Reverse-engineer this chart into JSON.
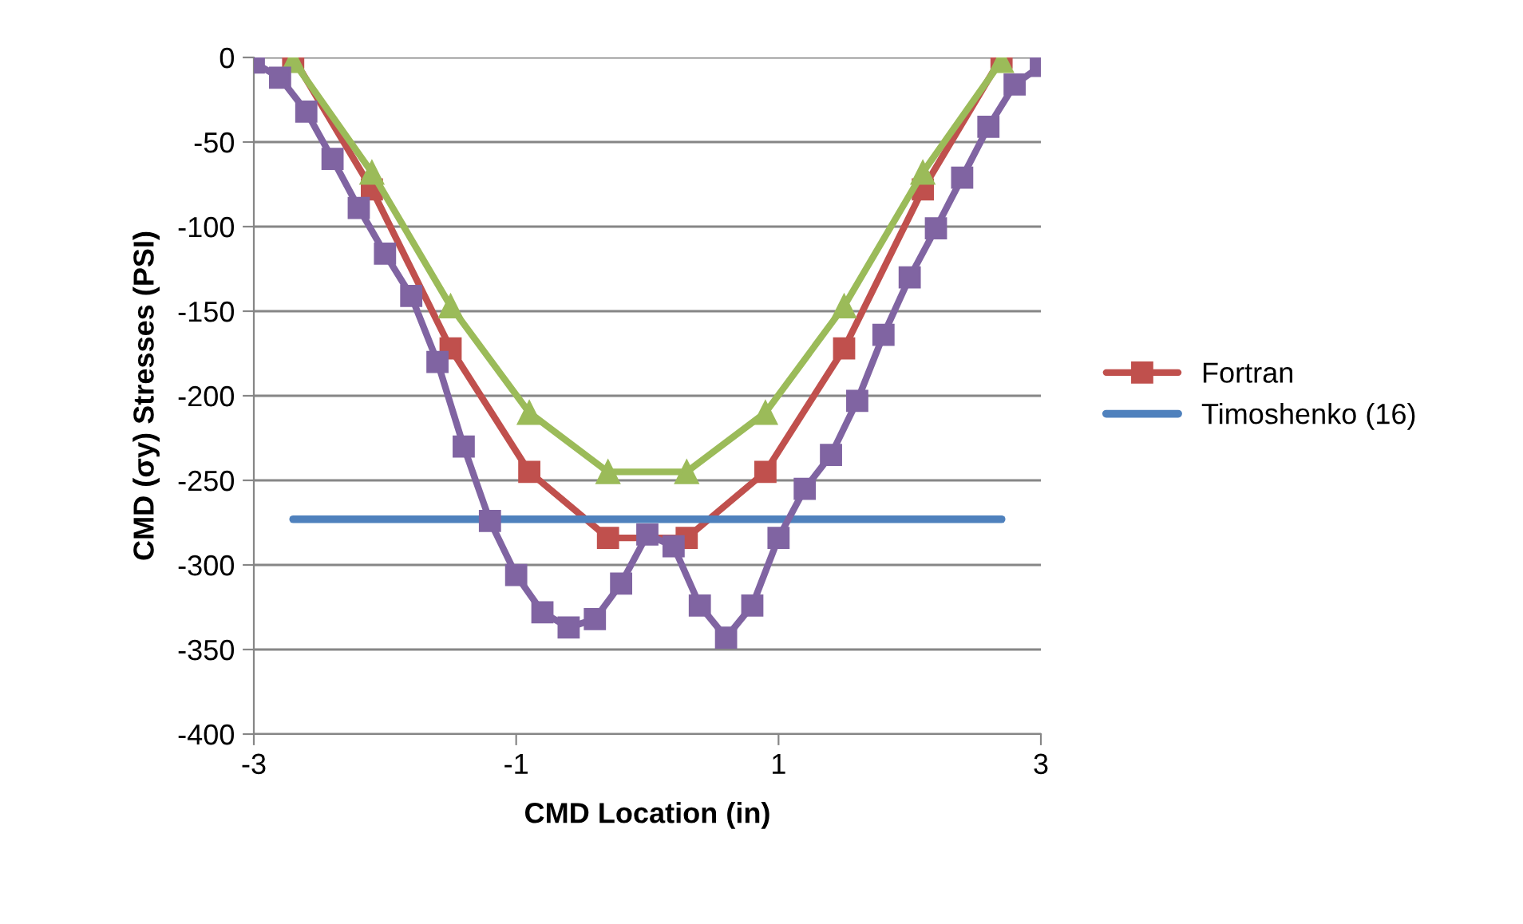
{
  "chart_data": {
    "type": "line",
    "xlabel": "CMD Location (in)",
    "ylabel": "CMD (σy) Stresses (PSI)",
    "xlim": [
      -3,
      3
    ],
    "xticks": [
      -3,
      -1,
      1,
      3
    ],
    "ylim": [
      -400,
      0
    ],
    "yticks": [
      0,
      -50,
      -100,
      -150,
      -200,
      -250,
      -300,
      -350,
      -400
    ],
    "grid": "y",
    "legend": "right",
    "series": [
      {
        "name": "Fortran",
        "color": "#c0504d",
        "marker": "square",
        "x": [
          -2.7,
          -2.1,
          -1.5,
          -0.9,
          -0.3,
          0.3,
          0.9,
          1.5,
          2.1,
          2.7
        ],
        "values": [
          0,
          -78,
          -172,
          -245,
          -284,
          -284,
          -245,
          -172,
          -78,
          0
        ]
      },
      {
        "color": "#9bbb59",
        "marker": "triangle",
        "x": [
          -2.7,
          -2.1,
          -1.5,
          -0.9,
          -0.3,
          0.3,
          0.9,
          1.5,
          2.1,
          2.7
        ],
        "values": [
          -2,
          -68,
          -147,
          -210,
          -245,
          -245,
          -210,
          -147,
          -68,
          -2
        ]
      },
      {
        "name": "Timoshenko (16)",
        "color": "#4f81bd",
        "marker": "none",
        "x": [
          -2.7,
          2.7
        ],
        "values": [
          -273,
          -273
        ]
      },
      {
        "color": "#8064a2",
        "marker": "square",
        "x": [
          -3.0,
          -2.8,
          -2.6,
          -2.4,
          -2.2,
          -2.0,
          -1.8,
          -1.6,
          -1.4,
          -1.2,
          -1.0,
          -0.8,
          -0.6,
          -0.4,
          -0.2,
          0.0,
          0.2,
          0.4,
          0.6,
          0.8,
          1.0,
          1.2,
          1.4,
          1.6,
          1.8,
          2.0,
          2.2,
          2.4,
          2.6,
          2.8,
          3.0
        ],
        "values": [
          -3,
          -12,
          -32,
          -60,
          -89,
          -116,
          -141,
          -180,
          -230,
          -274,
          -306,
          -328,
          -337,
          -332,
          -311,
          -282,
          -289,
          -324,
          -343,
          -324,
          -284,
          -255,
          -235,
          -203,
          -164,
          -130,
          -101,
          -71,
          -41,
          -16,
          -5
        ]
      }
    ]
  }
}
